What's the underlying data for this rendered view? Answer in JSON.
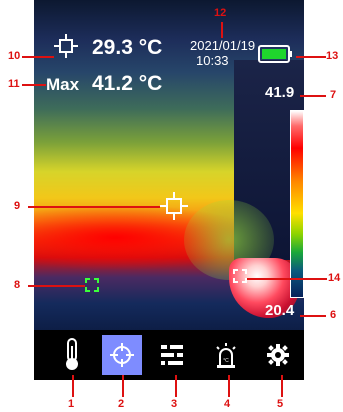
{
  "status": {
    "center_temperature": "29.3 °C",
    "max_label": "Max",
    "max_temperature": "41.2 °C",
    "date": "2021/01/19",
    "time": "10:33",
    "scale_max": "41.9",
    "scale_min": "20.4"
  },
  "toolbar": [
    {
      "name": "thermometer-icon"
    },
    {
      "name": "crosshair-icon",
      "active": true
    },
    {
      "name": "sliders-icon"
    },
    {
      "name": "alarm-icon"
    },
    {
      "name": "gear-icon"
    }
  ],
  "callouts": [
    "1",
    "2",
    "3",
    "4",
    "5",
    "6",
    "7",
    "8",
    "9",
    "10",
    "11",
    "12",
    "13",
    "14"
  ],
  "battery": {
    "level": 1.0,
    "color": "#1fd62d"
  }
}
